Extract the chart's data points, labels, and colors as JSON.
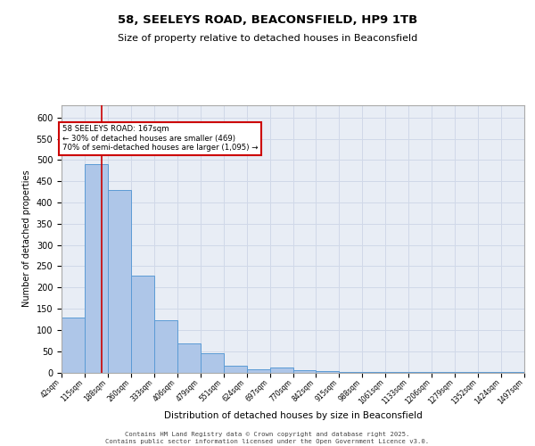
{
  "title1": "58, SEELEYS ROAD, BEACONSFIELD, HP9 1TB",
  "title2": "Size of property relative to detached houses in Beaconsfield",
  "xlabel": "Distribution of detached houses by size in Beaconsfield",
  "ylabel": "Number of detached properties",
  "bin_edges": [
    42,
    115,
    188,
    260,
    333,
    406,
    479,
    551,
    624,
    697,
    770,
    842,
    915,
    988,
    1061,
    1133,
    1206,
    1279,
    1352,
    1424,
    1497
  ],
  "bin_counts": [
    130,
    490,
    430,
    228,
    123,
    68,
    46,
    15,
    8,
    12,
    5,
    3,
    2,
    1,
    1,
    1,
    1,
    1,
    1,
    1
  ],
  "bar_color": "#aec6e8",
  "bar_edge_color": "#5b9bd5",
  "grid_color": "#d0d8e8",
  "background_color": "#e8edf5",
  "red_line_x": 167,
  "annotation_text": "58 SEELEYS ROAD: 167sqm\n← 30% of detached houses are smaller (469)\n70% of semi-detached houses are larger (1,095) →",
  "annotation_box_color": "#ffffff",
  "annotation_border_color": "#cc0000",
  "footer_text": "Contains HM Land Registry data © Crown copyright and database right 2025.\nContains public sector information licensed under the Open Government Licence v3.0.",
  "ylim": [
    0,
    630
  ],
  "yticks": [
    0,
    50,
    100,
    150,
    200,
    250,
    300,
    350,
    400,
    450,
    500,
    550,
    600
  ]
}
